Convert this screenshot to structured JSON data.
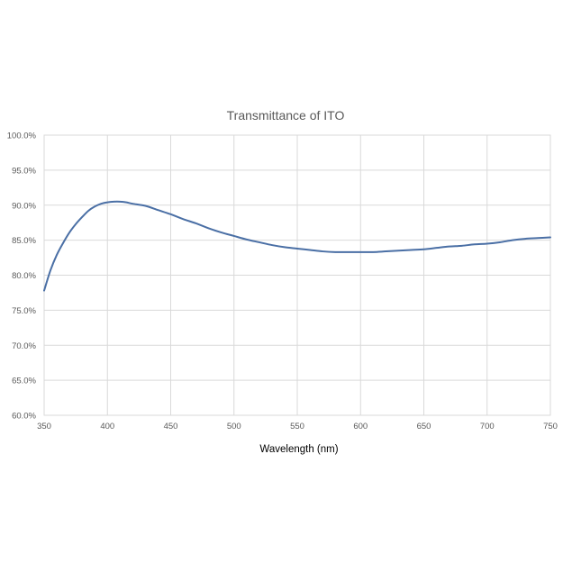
{
  "chart_data": {
    "type": "line",
    "title": "Transmittance of ITO",
    "xlabel": "Wavelength (nm)",
    "ylabel": "",
    "xlim": [
      350,
      750
    ],
    "ylim": [
      0.6,
      1.0
    ],
    "x_ticks": [
      350,
      400,
      450,
      500,
      550,
      600,
      650,
      700,
      750
    ],
    "y_ticks": [
      0.6,
      0.65,
      0.7,
      0.75,
      0.8,
      0.85,
      0.9,
      0.95,
      1.0
    ],
    "x_tick_labels": [
      "350",
      "400",
      "450",
      "500",
      "550",
      "600",
      "650",
      "700",
      "750"
    ],
    "y_tick_labels": [
      "60.0%",
      "65.0%",
      "70.0%",
      "75.0%",
      "80.0%",
      "85.0%",
      "90.0%",
      "95.0%",
      "100.0%"
    ],
    "grid": true,
    "legend": "none",
    "series": [
      {
        "color": "#4a6fa5",
        "x": [
          350,
          355,
          360,
          365,
          370,
          375,
          380,
          385,
          390,
          395,
          400,
          405,
          410,
          415,
          420,
          430,
          440,
          450,
          460,
          470,
          480,
          490,
          500,
          510,
          520,
          530,
          540,
          550,
          560,
          570,
          580,
          590,
          600,
          610,
          620,
          630,
          640,
          650,
          660,
          670,
          680,
          690,
          700,
          710,
          720,
          730,
          740,
          750
        ],
        "y": [
          0.778,
          0.807,
          0.829,
          0.846,
          0.861,
          0.873,
          0.883,
          0.892,
          0.898,
          0.902,
          0.904,
          0.905,
          0.905,
          0.904,
          0.902,
          0.899,
          0.893,
          0.887,
          0.88,
          0.874,
          0.867,
          0.861,
          0.856,
          0.851,
          0.847,
          0.843,
          0.84,
          0.838,
          0.836,
          0.834,
          0.833,
          0.833,
          0.833,
          0.833,
          0.834,
          0.835,
          0.836,
          0.837,
          0.839,
          0.841,
          0.842,
          0.844,
          0.845,
          0.847,
          0.85,
          0.852,
          0.853,
          0.854
        ]
      }
    ]
  }
}
